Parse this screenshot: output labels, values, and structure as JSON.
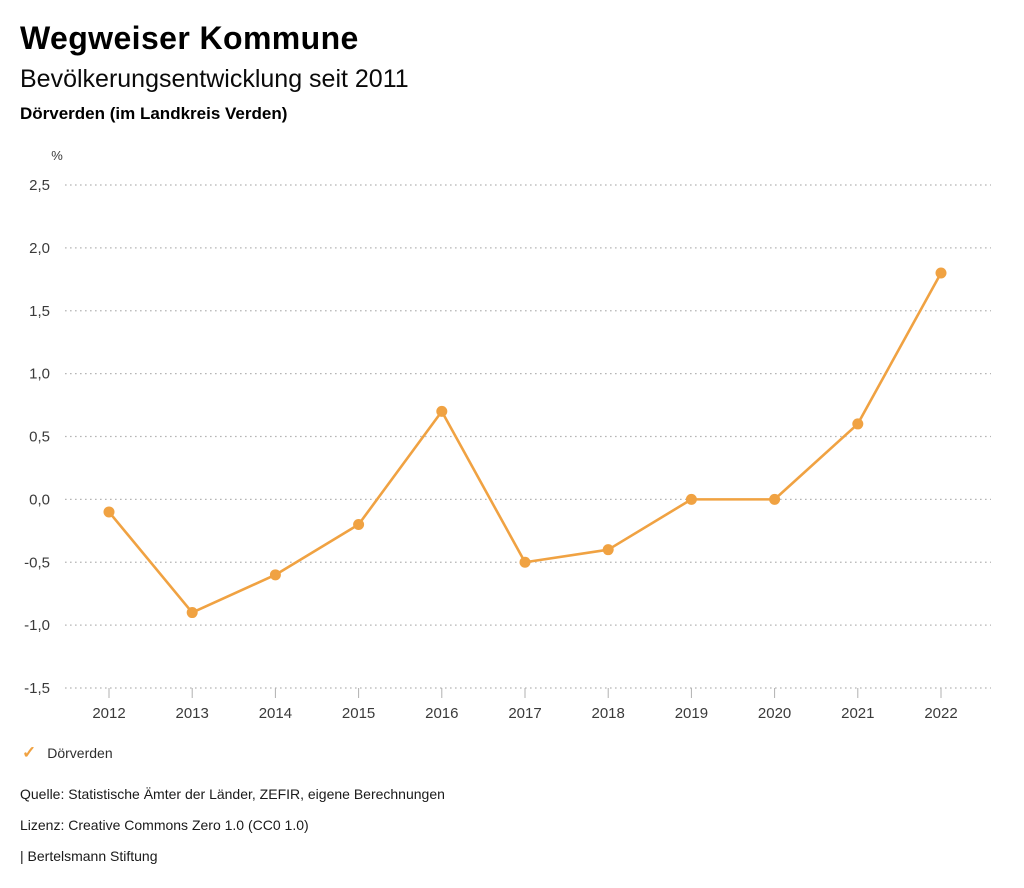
{
  "header": {
    "title": "Wegweiser Kommune",
    "subtitle": "Bevölkerungsentwicklung seit 2011",
    "region": "Dörverden (im Landkreis Verden)"
  },
  "chart_data": {
    "type": "line",
    "title": "Bevölkerungsentwicklung seit 2011",
    "unit_label": "%",
    "x": [
      "2012",
      "2013",
      "2014",
      "2015",
      "2016",
      "2017",
      "2018",
      "2019",
      "2020",
      "2021",
      "2022"
    ],
    "series": [
      {
        "name": "Dörverden",
        "values": [
          -0.1,
          -0.9,
          -0.6,
          -0.2,
          0.7,
          -0.5,
          -0.4,
          0.0,
          0.0,
          0.6,
          1.8
        ],
        "color": "#F0A242"
      }
    ],
    "ylim": [
      -1.5,
      2.5
    ],
    "ytick_values": [
      2.5,
      2.0,
      1.5,
      1.0,
      0.5,
      0.0,
      -0.5,
      -1.0,
      -1.5
    ],
    "ytick_labels": [
      "2,5",
      "2,0",
      "1,5",
      "1,0",
      "0,5",
      "0,0",
      "-0,5",
      "-1,0",
      "-1,5"
    ],
    "grid": "horizontal-dotted",
    "legend_position": "bottom-left"
  },
  "legend": {
    "items": [
      {
        "label": "Dörverden",
        "color": "#F0A242"
      }
    ]
  },
  "icons": {
    "legend_check": "✓"
  },
  "footer": {
    "source": "Quelle: Statistische Ämter der Länder, ZEFIR, eigene Berechnungen",
    "license": "Lizenz: Creative Commons Zero 1.0 (CC0 1.0)",
    "attribution": "| Bertelsmann Stiftung"
  },
  "colors": {
    "accent": "#F0A242",
    "grid": "#b5b5b5",
    "tick": "#b0b0b0",
    "axis_text": "#3a3a3a",
    "background": "#ffffff"
  }
}
